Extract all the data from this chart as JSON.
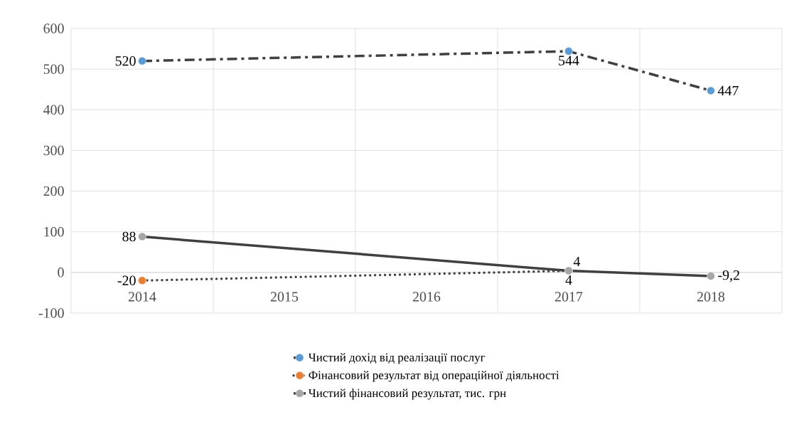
{
  "chart_data": {
    "type": "line",
    "categories": [
      "2014",
      "2015",
      "2016",
      "2017",
      "2018"
    ],
    "series": [
      {
        "name": "Чистий дохід від реалізації послуг",
        "color": "#5b9bd5",
        "line_style": "dashed",
        "values": [
          520,
          null,
          null,
          544,
          447
        ],
        "value_labels": [
          "520",
          null,
          null,
          "544",
          "447"
        ]
      },
      {
        "name": "Фінансовий результат від операційної діяльності",
        "color": "#ed7d31",
        "line_style": "dotted",
        "values": [
          -20,
          null,
          null,
          4,
          null
        ],
        "value_labels": [
          "-20",
          null,
          null,
          "4",
          null
        ]
      },
      {
        "name": "Чистий фінансовий результат, тис. грн",
        "color": "#a5a5a5",
        "line_style": "solid",
        "values": [
          88,
          null,
          null,
          4,
          -9.2
        ],
        "value_labels": [
          "88",
          null,
          null,
          "4",
          "-9,2"
        ]
      }
    ],
    "ylim": [
      -100,
      600
    ],
    "yticks": [
      -100,
      0,
      100,
      200,
      300,
      400,
      500,
      600
    ],
    "grid": true,
    "legend": "bottom",
    "marker": "circle"
  }
}
